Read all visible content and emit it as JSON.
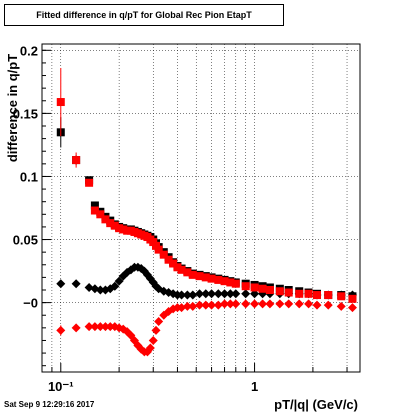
{
  "title": "Fitted difference in q/pT for Global Rec Pion EtapT",
  "timestamp": "Sat Sep  9 12:29:16 2017",
  "chart_data": {
    "type": "scatter",
    "title": "Fitted difference in q/pT for Global Rec Pion EtapT",
    "xlabel": "pT/|q| (GeV/c)",
    "ylabel": "difference in q/pT",
    "xscale": "log",
    "xlim": [
      0.08,
      3.5
    ],
    "ylim": [
      -0.055,
      0.205
    ],
    "x_tick_labels": [
      "10⁻¹",
      "1"
    ],
    "y_tick_labels": [
      "−0",
      "0.05",
      "0.1",
      "0.15",
      "0.2"
    ],
    "y_ticks": [
      0,
      0.05,
      0.1,
      0.15,
      0.2
    ],
    "grid": true,
    "series": [
      {
        "color": "#000000",
        "marker": "square",
        "x": [
          0.1,
          0.12,
          0.14,
          0.15,
          0.16,
          0.17,
          0.18,
          0.19,
          0.2,
          0.21,
          0.22,
          0.23,
          0.24,
          0.25,
          0.26,
          0.27,
          0.28,
          0.29,
          0.3,
          0.31,
          0.32,
          0.34,
          0.36,
          0.38,
          0.4,
          0.42,
          0.45,
          0.48,
          0.52,
          0.56,
          0.6,
          0.65,
          0.7,
          0.75,
          0.8,
          0.9,
          1.0,
          1.1,
          1.2,
          1.35,
          1.5,
          1.7,
          1.9,
          2.1,
          2.4,
          2.8,
          3.2
        ],
        "y": [
          0.135,
          0.113,
          0.097,
          0.077,
          0.072,
          0.068,
          0.065,
          0.062,
          0.06,
          0.059,
          0.058,
          0.058,
          0.057,
          0.056,
          0.055,
          0.054,
          0.053,
          0.052,
          0.05,
          0.047,
          0.044,
          0.04,
          0.036,
          0.032,
          0.029,
          0.027,
          0.025,
          0.023,
          0.022,
          0.021,
          0.02,
          0.019,
          0.018,
          0.017,
          0.016,
          0.015,
          0.014,
          0.013,
          0.012,
          0.011,
          0.01,
          0.009,
          0.008,
          0.007,
          0.006,
          0.006,
          0.005
        ],
        "yerr": [
          0.012,
          0.004,
          0.003,
          0.002,
          0.002,
          0.002,
          0.002,
          0.002,
          0.002,
          0.002,
          0.002,
          0.002,
          0.002,
          0.002,
          0.002,
          0.002,
          0.002,
          0.002,
          0.002,
          0.002,
          0.002,
          0.002,
          0.002,
          0.002,
          0.002,
          0.002,
          0.002,
          0.002,
          0.002,
          0.002,
          0.002,
          0.002,
          0.002,
          0.002,
          0.002,
          0.002,
          0.002,
          0.002,
          0.002,
          0.002,
          0.002,
          0.002,
          0.002,
          0.002,
          0.002,
          0.002,
          0.002
        ]
      },
      {
        "color": "#000000",
        "marker": "diamond",
        "x": [
          0.1,
          0.12,
          0.14,
          0.15,
          0.16,
          0.17,
          0.18,
          0.19,
          0.2,
          0.21,
          0.22,
          0.23,
          0.24,
          0.25,
          0.26,
          0.27,
          0.28,
          0.29,
          0.3,
          0.31,
          0.32,
          0.34,
          0.36,
          0.38,
          0.4,
          0.42,
          0.45,
          0.48,
          0.52,
          0.56,
          0.6,
          0.65,
          0.7,
          0.75,
          0.8,
          0.9,
          1.0,
          1.1,
          1.2,
          1.35,
          1.5,
          1.7,
          1.9,
          2.1,
          2.4,
          2.8,
          3.2
        ],
        "y": [
          0.015,
          0.015,
          0.012,
          0.011,
          0.01,
          0.01,
          0.011,
          0.013,
          0.017,
          0.021,
          0.024,
          0.026,
          0.028,
          0.028,
          0.027,
          0.025,
          0.022,
          0.019,
          0.016,
          0.013,
          0.011,
          0.009,
          0.008,
          0.007,
          0.006,
          0.006,
          0.006,
          0.006,
          0.007,
          0.007,
          0.007,
          0.007,
          0.007,
          0.007,
          0.007,
          0.007,
          0.007,
          0.007,
          0.007,
          0.007,
          0.007,
          0.007,
          0.007,
          0.006,
          0.006,
          0.006,
          0.006
        ],
        "yerr": [
          0.003,
          0.002,
          0.001,
          0.001,
          0.001,
          0.001,
          0.001,
          0.001,
          0.001,
          0.001,
          0.001,
          0.001,
          0.001,
          0.001,
          0.001,
          0.001,
          0.001,
          0.001,
          0.001,
          0.001,
          0.001,
          0.001,
          0.001,
          0.001,
          0.001,
          0.001,
          0.001,
          0.001,
          0.001,
          0.001,
          0.001,
          0.001,
          0.001,
          0.001,
          0.001,
          0.001,
          0.001,
          0.001,
          0.001,
          0.001,
          0.001,
          0.001,
          0.001,
          0.001,
          0.001,
          0.001,
          0.001
        ]
      },
      {
        "color": "#ff0000",
        "marker": "square",
        "x": [
          0.1,
          0.12,
          0.14,
          0.15,
          0.16,
          0.17,
          0.18,
          0.19,
          0.2,
          0.21,
          0.22,
          0.23,
          0.24,
          0.25,
          0.26,
          0.27,
          0.28,
          0.29,
          0.3,
          0.31,
          0.32,
          0.34,
          0.36,
          0.38,
          0.4,
          0.42,
          0.45,
          0.48,
          0.52,
          0.56,
          0.6,
          0.65,
          0.7,
          0.75,
          0.8,
          0.9,
          1.0,
          1.1,
          1.2,
          1.35,
          1.5,
          1.7,
          1.9,
          2.1,
          2.4,
          2.8,
          3.2
        ],
        "y": [
          0.159,
          0.113,
          0.095,
          0.073,
          0.07,
          0.066,
          0.063,
          0.061,
          0.059,
          0.058,
          0.057,
          0.057,
          0.056,
          0.055,
          0.054,
          0.053,
          0.052,
          0.05,
          0.048,
          0.045,
          0.042,
          0.038,
          0.034,
          0.031,
          0.028,
          0.026,
          0.024,
          0.022,
          0.021,
          0.02,
          0.019,
          0.018,
          0.017,
          0.016,
          0.015,
          0.013,
          0.012,
          0.011,
          0.01,
          0.009,
          0.008,
          0.007,
          0.007,
          0.006,
          0.006,
          0.005,
          0.003
        ],
        "yerr": [
          0.027,
          0.006,
          0.003,
          0.002,
          0.002,
          0.002,
          0.002,
          0.002,
          0.002,
          0.002,
          0.002,
          0.002,
          0.002,
          0.002,
          0.002,
          0.002,
          0.002,
          0.002,
          0.002,
          0.002,
          0.002,
          0.002,
          0.002,
          0.002,
          0.002,
          0.002,
          0.002,
          0.002,
          0.002,
          0.002,
          0.002,
          0.002,
          0.002,
          0.002,
          0.002,
          0.002,
          0.002,
          0.002,
          0.002,
          0.002,
          0.002,
          0.002,
          0.002,
          0.002,
          0.002,
          0.002,
          0.002
        ]
      },
      {
        "color": "#ff0000",
        "marker": "diamond",
        "x": [
          0.1,
          0.12,
          0.14,
          0.15,
          0.16,
          0.17,
          0.18,
          0.19,
          0.2,
          0.21,
          0.22,
          0.23,
          0.24,
          0.25,
          0.26,
          0.27,
          0.28,
          0.29,
          0.3,
          0.31,
          0.32,
          0.34,
          0.36,
          0.38,
          0.4,
          0.42,
          0.45,
          0.48,
          0.52,
          0.56,
          0.6,
          0.65,
          0.7,
          0.75,
          0.8,
          0.9,
          1.0,
          1.1,
          1.2,
          1.35,
          1.5,
          1.7,
          1.9,
          2.1,
          2.4,
          2.8,
          3.2
        ],
        "y": [
          -0.022,
          -0.02,
          -0.019,
          -0.019,
          -0.019,
          -0.019,
          -0.019,
          -0.019,
          -0.02,
          -0.021,
          -0.023,
          -0.026,
          -0.03,
          -0.034,
          -0.037,
          -0.039,
          -0.039,
          -0.036,
          -0.03,
          -0.022,
          -0.015,
          -0.01,
          -0.007,
          -0.005,
          -0.004,
          -0.004,
          -0.003,
          -0.003,
          -0.002,
          -0.002,
          -0.002,
          -0.002,
          -0.001,
          -0.001,
          -0.001,
          -0.001,
          -0.001,
          -0.001,
          -0.001,
          -0.001,
          -0.001,
          -0.001,
          -0.001,
          -0.002,
          -0.002,
          -0.003,
          -0.004
        ],
        "yerr": [
          0.004,
          0.002,
          0.001,
          0.001,
          0.001,
          0.001,
          0.001,
          0.001,
          0.001,
          0.001,
          0.001,
          0.001,
          0.001,
          0.001,
          0.001,
          0.001,
          0.001,
          0.001,
          0.001,
          0.001,
          0.001,
          0.001,
          0.001,
          0.001,
          0.001,
          0.001,
          0.001,
          0.001,
          0.001,
          0.001,
          0.001,
          0.001,
          0.001,
          0.001,
          0.001,
          0.001,
          0.001,
          0.001,
          0.001,
          0.001,
          0.001,
          0.001,
          0.001,
          0.001,
          0.001,
          0.001,
          0.001
        ]
      }
    ]
  }
}
